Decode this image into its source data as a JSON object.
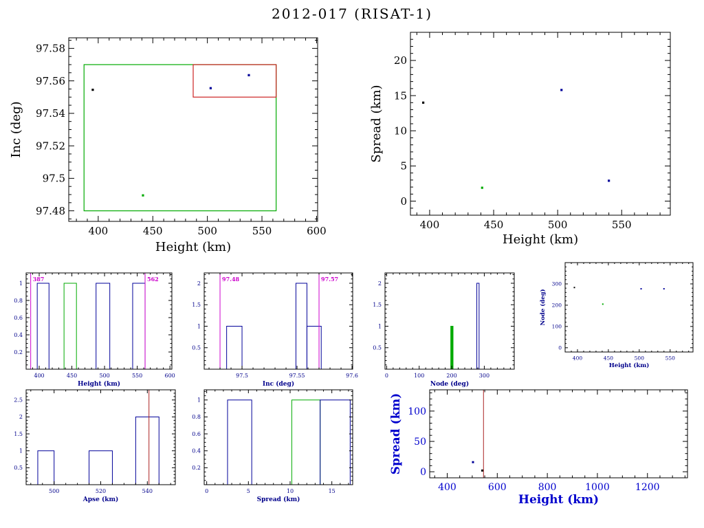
{
  "title": "2012-017 (RISAT-1)",
  "colors": {
    "navy": "#000099",
    "green": "#00aa00",
    "magenta": "#cc00cc",
    "red_box": "#cc2222",
    "red_line": "#aa2222",
    "black": "#000000",
    "small_label_blue": "#00008b",
    "bright_label_blue": "#0000cd"
  },
  "chart_data": [
    {
      "id": "inc-vs-height",
      "type": "scatter",
      "xlabel": "Height (km)",
      "ylabel": "Inc (deg)",
      "xlim": [
        373,
        601
      ],
      "ylim": [
        97.4735,
        97.5865
      ],
      "xticks": [
        400,
        450,
        500,
        550,
        600
      ],
      "yticks": [
        97.48,
        97.5,
        97.52,
        97.54,
        97.56,
        97.58
      ],
      "points": [
        {
          "x": 395,
          "y": 97.5545,
          "c": "#000000"
        },
        {
          "x": 503,
          "y": 97.5555,
          "c": "#000099"
        },
        {
          "x": 538,
          "y": 97.5635,
          "c": "#000099"
        },
        {
          "x": 441,
          "y": 97.4895,
          "c": "#00aa00"
        }
      ],
      "boxes": [
        {
          "x0": 387,
          "y0": 97.48,
          "x1": 563,
          "y1": 97.57,
          "c": "#00aa00"
        },
        {
          "x0": 487,
          "y0": 97.55,
          "x1": 563,
          "y1": 97.57,
          "c": "#cc2222"
        }
      ]
    },
    {
      "id": "spread-vs-height",
      "type": "scatter",
      "xlabel": "Height (km)",
      "ylabel": "Spread (km)",
      "xlim": [
        385,
        588
      ],
      "ylim": [
        -2,
        24
      ],
      "xticks": [
        400,
        450,
        500,
        550
      ],
      "yticks": [
        0,
        5,
        10,
        15,
        20
      ],
      "points": [
        {
          "x": 395,
          "y": 14,
          "c": "#000000"
        },
        {
          "x": 441,
          "y": 1.9,
          "c": "#00aa00"
        },
        {
          "x": 503,
          "y": 15.8,
          "c": "#000099"
        },
        {
          "x": 540,
          "y": 2.9,
          "c": "#000099"
        }
      ]
    },
    {
      "id": "height-hist",
      "type": "histogram",
      "xlabel": "Height (km)",
      "ylabel": "",
      "xlim": [
        380,
        603
      ],
      "ylim": [
        0,
        1.12
      ],
      "xticks": [
        400,
        450,
        500,
        550,
        600
      ],
      "yticks": [
        0.2,
        0.4,
        0.6,
        0.8,
        1
      ],
      "bars": [
        {
          "x0": 397,
          "x1": 415,
          "h": 1,
          "c": "#000099"
        },
        {
          "x0": 438,
          "x1": 457,
          "h": 1,
          "c": "#00aa00"
        },
        {
          "x0": 487,
          "x1": 508,
          "h": 1,
          "c": "#000099"
        },
        {
          "x0": 543,
          "x1": 562,
          "h": 1,
          "c": "#000099"
        }
      ],
      "vlines": [
        {
          "x": 387,
          "c": "#cc00cc",
          "label": "387"
        },
        {
          "x": 562,
          "c": "#cc00cc",
          "label": "562"
        }
      ]
    },
    {
      "id": "inc-hist",
      "type": "histogram",
      "xlabel": "Inc (deg)",
      "ylabel": "",
      "xlim": [
        97.4656,
        97.6006
      ],
      "ylim": [
        0,
        2.24
      ],
      "xticks": [
        97.5,
        97.55,
        97.6
      ],
      "yticks": [
        0.5,
        1,
        1.5,
        2
      ],
      "bars": [
        {
          "x0": 97.486,
          "x1": 97.5,
          "h": 1,
          "c": "#000099"
        },
        {
          "x0": 97.549,
          "x1": 97.559,
          "h": 2,
          "c": "#000099"
        },
        {
          "x0": 97.559,
          "x1": 97.572,
          "h": 1,
          "c": "#000099"
        }
      ],
      "vlines": [
        {
          "x": 97.48,
          "c": "#cc00cc",
          "label": "97.48"
        },
        {
          "x": 97.57,
          "c": "#cc00cc",
          "label": "97.57"
        }
      ]
    },
    {
      "id": "node-hist",
      "type": "histogram",
      "xlabel": "Node (deg)",
      "ylabel": "",
      "xlim": [
        -5,
        392
      ],
      "ylim": [
        0,
        2.24
      ],
      "xticks": [
        0,
        100,
        200,
        300
      ],
      "yticks": [
        0.5,
        1,
        1.5,
        2
      ],
      "bars": [
        {
          "x0": 197,
          "x1": 204,
          "h": 1,
          "c": "#00aa00",
          "fill": true
        },
        {
          "x0": 277,
          "x1": 284,
          "h": 2,
          "c": "#000099"
        }
      ]
    },
    {
      "id": "node-vs-height",
      "type": "scatter",
      "xlabel": "Height (km)",
      "ylabel": "Node (deg)",
      "xlim": [
        380,
        587
      ],
      "ylim": [
        -20,
        400
      ],
      "xticks": [
        400,
        450,
        500,
        550
      ],
      "yticks": [
        0,
        100,
        200,
        300
      ],
      "points": [
        {
          "x": 395,
          "y": 283,
          "c": "#000000"
        },
        {
          "x": 441,
          "y": 205,
          "c": "#00aa00"
        },
        {
          "x": 503,
          "y": 277,
          "c": "#000099"
        },
        {
          "x": 540,
          "y": 277,
          "c": "#000099"
        }
      ]
    },
    {
      "id": "apse-hist",
      "type": "histogram",
      "xlabel": "Apse (km)",
      "ylabel": "",
      "xlim": [
        488,
        552
      ],
      "ylim": [
        0,
        2.8
      ],
      "xticks": [
        500,
        520,
        540
      ],
      "yticks": [
        0.5,
        1,
        1.5,
        2,
        2.5
      ],
      "bars": [
        {
          "x0": 493,
          "x1": 500,
          "h": 1,
          "c": "#000099"
        },
        {
          "x0": 515,
          "x1": 525,
          "h": 1,
          "c": "#000099"
        },
        {
          "x0": 535,
          "x1": 545,
          "h": 2,
          "c": "#000099"
        }
      ],
      "vlines": [
        {
          "x": 540.7,
          "c": "#aa2222"
        }
      ]
    },
    {
      "id": "spread-hist",
      "type": "histogram",
      "xlabel": "Spread (km)",
      "ylabel": "",
      "xlim": [
        -0.3,
        17.5
      ],
      "ylim": [
        0,
        1.12
      ],
      "xticks": [
        0,
        5,
        10,
        15
      ],
      "yticks": [
        0.2,
        0.4,
        0.6,
        0.8,
        1
      ],
      "bars": [
        {
          "x0": 2.5,
          "x1": 5.4,
          "h": 1,
          "c": "#000099"
        },
        {
          "x0": 10.2,
          "x1": 13.6,
          "h": 1,
          "c": "#00aa00"
        },
        {
          "x0": 13.6,
          "x1": 17.2,
          "h": 1,
          "c": "#000099"
        }
      ]
    },
    {
      "id": "spread-vs-height-2",
      "type": "scatter",
      "xlabel": "Height (km)",
      "ylabel": "Spread (km)",
      "xlim": [
        330,
        1360
      ],
      "ylim": [
        -10,
        135
      ],
      "xticks": [
        400,
        600,
        800,
        1000,
        1200
      ],
      "yticks": [
        0,
        50,
        100
      ],
      "points": [
        {
          "x": 503,
          "y": 15.8,
          "c": "#000099"
        },
        {
          "x": 540,
          "y": 2,
          "c": "#000000"
        }
      ],
      "vlines": [
        {
          "x": 545,
          "c": "#aa2222"
        }
      ]
    }
  ]
}
